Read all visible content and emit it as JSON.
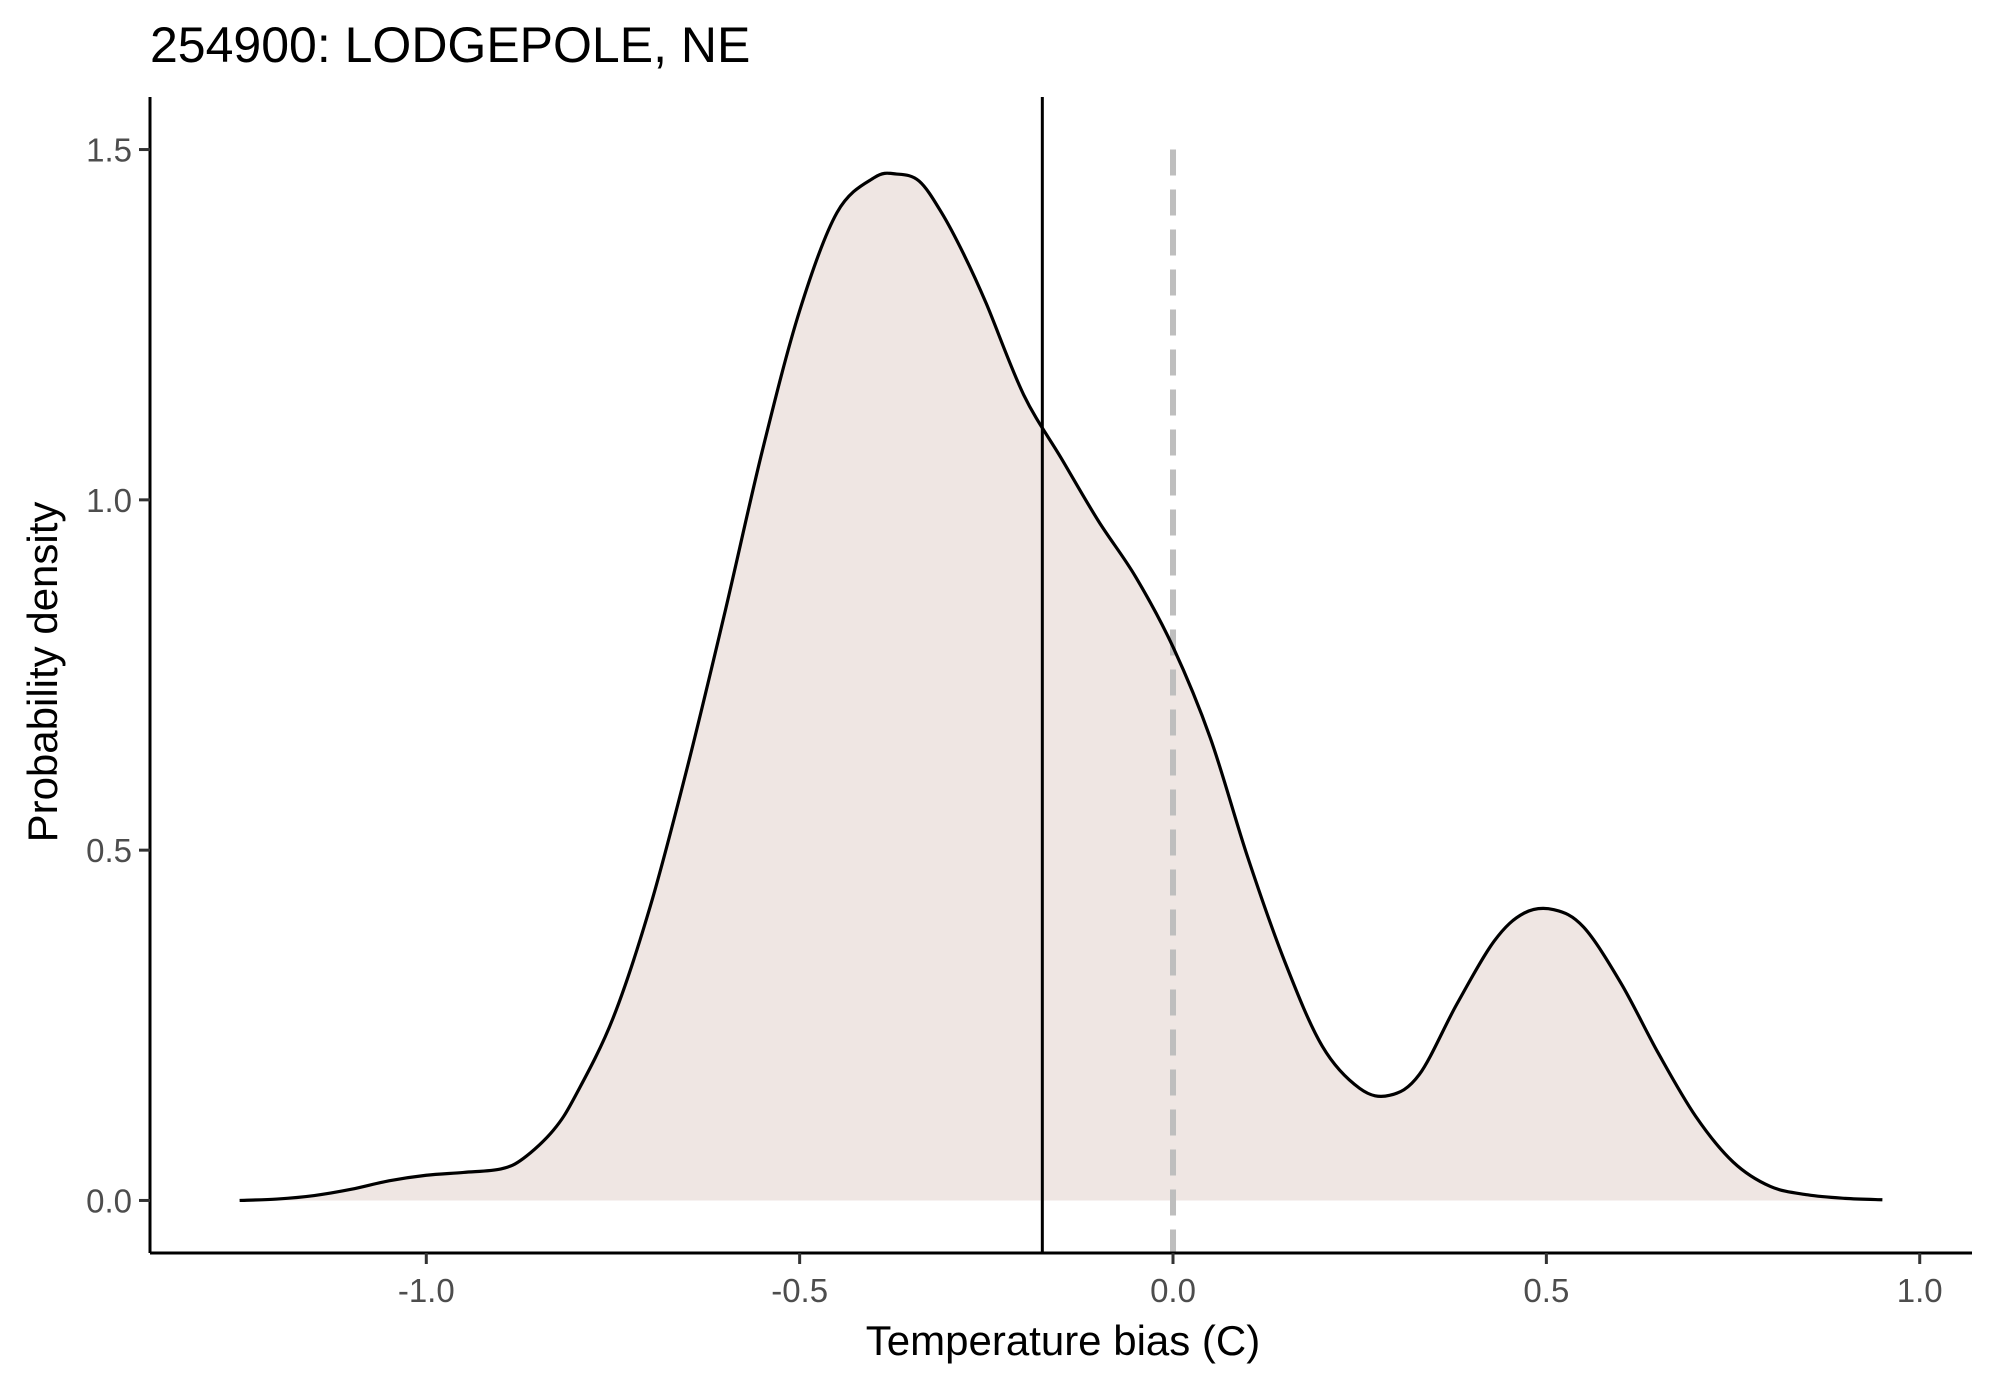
{
  "chart_data": {
    "type": "area",
    "title": "254900: LODGEPOLE, NE",
    "xlabel": "Temperature bias (C)",
    "ylabel": "Probability density",
    "xlim": [
      -1.37,
      1.07
    ],
    "ylim": [
      -0.075,
      1.575
    ],
    "x_ticks": [
      -1.0,
      -0.5,
      0.0,
      0.5,
      1.0
    ],
    "x_tick_labels": [
      "-1.0",
      "-0.5",
      "0.0",
      "0.5",
      "1.0"
    ],
    "y_ticks": [
      0.0,
      0.5,
      1.0,
      1.5
    ],
    "y_tick_labels": [
      "0.0",
      "0.5",
      "1.0",
      "1.5"
    ],
    "grid": false,
    "legend": "none",
    "fill_color": "#efe6e3",
    "line_color": "#000000",
    "series": [
      {
        "x": [
          -1.25,
          -1.2,
          -1.15,
          -1.1,
          -1.05,
          -1.0,
          -0.95,
          -0.9,
          -0.87,
          -0.83,
          -0.8,
          -0.75,
          -0.7,
          -0.65,
          -0.6,
          -0.55,
          -0.5,
          -0.45,
          -0.4,
          -0.37,
          -0.34,
          -0.31,
          -0.28,
          -0.25,
          -0.2,
          -0.15,
          -0.1,
          -0.05,
          0.0,
          0.05,
          0.1,
          0.15,
          0.2,
          0.25,
          0.29,
          0.33,
          0.38,
          0.43,
          0.47,
          0.51,
          0.55,
          0.6,
          0.65,
          0.7,
          0.75,
          0.8,
          0.85,
          0.9,
          0.95
        ],
        "y": [
          0.0,
          0.002,
          0.007,
          0.016,
          0.028,
          0.036,
          0.04,
          0.045,
          0.06,
          0.1,
          0.15,
          0.26,
          0.42,
          0.62,
          0.84,
          1.07,
          1.27,
          1.41,
          1.46,
          1.465,
          1.455,
          1.41,
          1.35,
          1.28,
          1.15,
          1.06,
          0.97,
          0.89,
          0.79,
          0.66,
          0.49,
          0.34,
          0.22,
          0.16,
          0.15,
          0.18,
          0.28,
          0.37,
          0.41,
          0.415,
          0.39,
          0.31,
          0.21,
          0.12,
          0.055,
          0.02,
          0.008,
          0.003,
          0.001
        ]
      }
    ],
    "reference_lines": [
      {
        "x": -0.175,
        "style": "solid",
        "color": "#000000"
      },
      {
        "x": 0.0,
        "style": "dashed",
        "color": "#bebebe"
      }
    ]
  }
}
